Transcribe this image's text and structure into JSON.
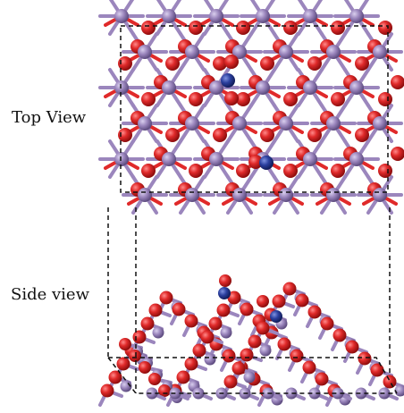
{
  "labels": {
    "top": "Top View",
    "side": "Side view"
  },
  "colors": {
    "oxygen": "#e02a2a",
    "metal": "#9b86bd",
    "adsorbate": "#2b3f9e",
    "frame": "#111111"
  },
  "atoms": [
    "oxygen",
    "metal",
    "adsorbate"
  ]
}
